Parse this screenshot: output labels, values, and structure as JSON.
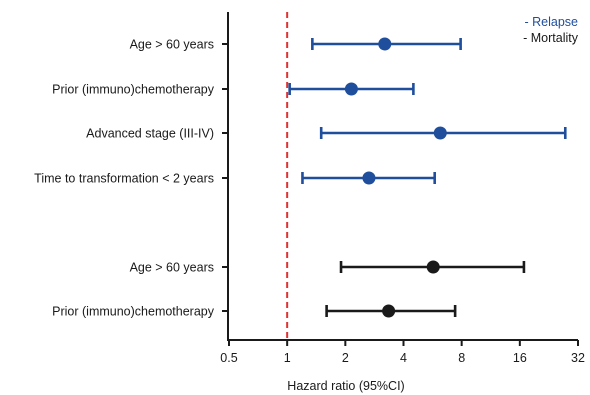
{
  "chart_data": {
    "type": "scatter",
    "subtype": "forest-plot",
    "xlabel": "Hazard ratio (95%CI)",
    "xscale": "log2",
    "xlim": [
      0.5,
      32
    ],
    "x_ticks": [
      "0.5",
      "1",
      "2",
      "4",
      "8",
      "16",
      "32"
    ],
    "reference_line": {
      "x": 1,
      "style": "dashed",
      "color": "#e03030"
    },
    "legend": {
      "placement": "top-right",
      "entries": [
        {
          "label": "- Relapse",
          "color": "#1f4e9c"
        },
        {
          "label": "- Mortality",
          "color": "#1a1a1a"
        }
      ]
    },
    "series": [
      {
        "name": "Relapse",
        "color": "#1f4e9c",
        "rows": [
          {
            "label": "Age > 60 years",
            "hr": 3.2,
            "lower": 1.35,
            "upper": 7.9
          },
          {
            "label": "Prior (immuno)chemotherapy",
            "hr": 2.15,
            "lower": 1.03,
            "upper": 4.5
          },
          {
            "label": "Advanced stage (III-IV)",
            "hr": 6.2,
            "lower": 1.5,
            "upper": 27.5
          },
          {
            "label": "Time to transformation < 2 years",
            "hr": 2.65,
            "lower": 1.2,
            "upper": 5.8
          }
        ]
      },
      {
        "name": "Mortality",
        "color": "#1a1a1a",
        "rows": [
          {
            "label": "Age > 60 years",
            "hr": 5.7,
            "lower": 1.9,
            "upper": 16.8
          },
          {
            "label": "Prior (immuno)chemotherapy",
            "hr": 3.35,
            "lower": 1.6,
            "upper": 7.4
          }
        ]
      }
    ]
  }
}
